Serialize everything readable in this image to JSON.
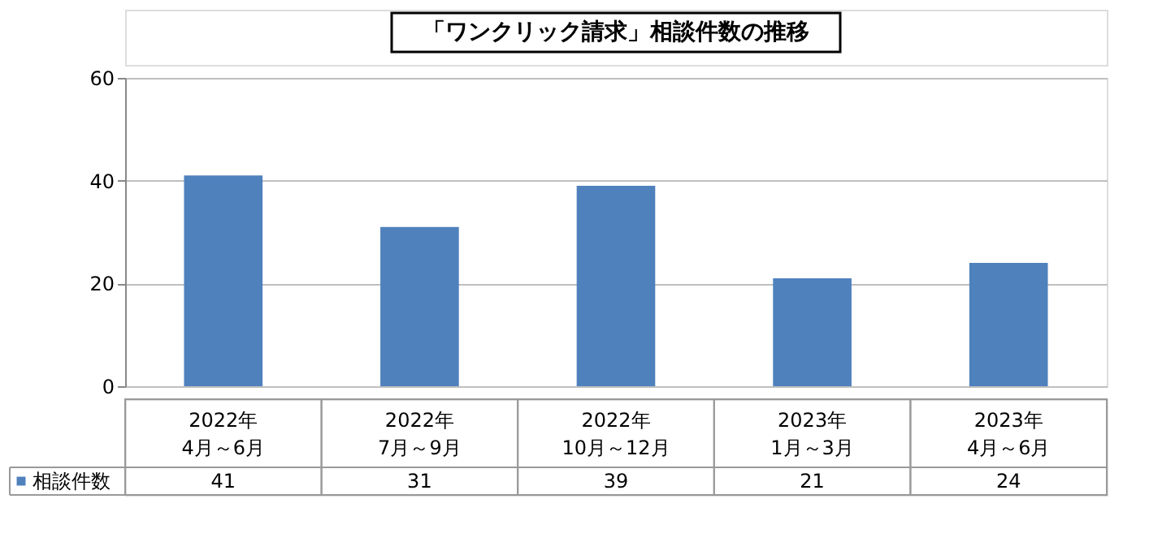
{
  "chart_data": {
    "type": "bar",
    "title": "「ワンクリック請求」相談件数の推移",
    "categories": [
      "2022年\n4月～6月",
      "2022年\n7月～9月",
      "2022年\n10月～12月",
      "2023年\n1月～3月",
      "2023年\n4月～6月"
    ],
    "series": [
      {
        "name": "相談件数",
        "color": "#4f81bd",
        "values": [
          41,
          31,
          39,
          21,
          24
        ]
      }
    ],
    "ylim": [
      0,
      60
    ],
    "yticks": [
      0,
      20,
      40,
      60
    ],
    "grid": "y",
    "legend": "bottom",
    "data_labels": true
  }
}
